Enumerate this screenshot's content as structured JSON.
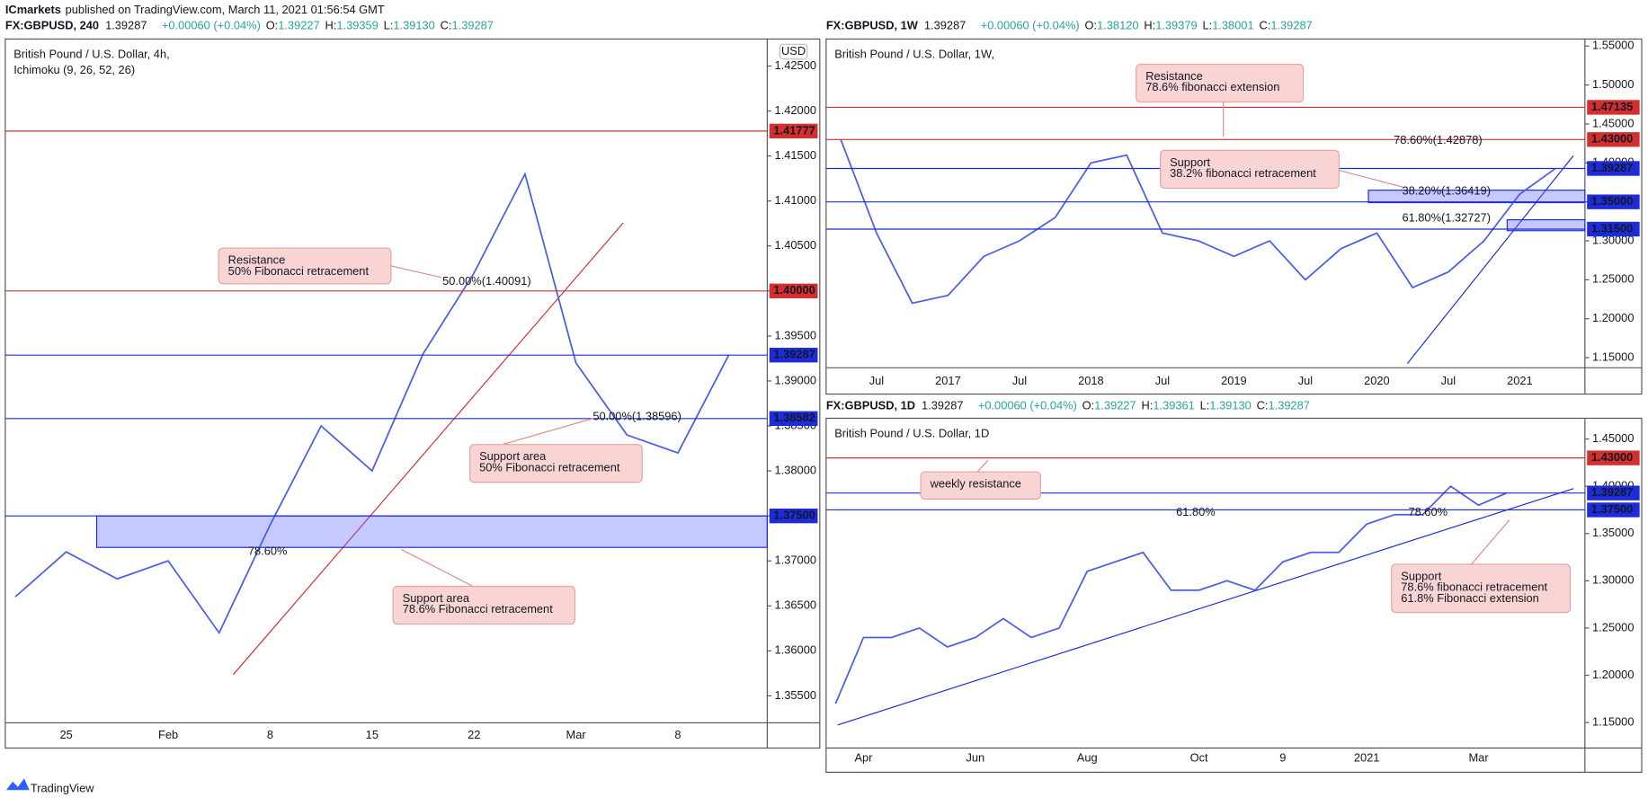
{
  "header": {
    "publisher": "ICmarkets",
    "published": "published on TradingView.com, March 11, 2021 01:56:54 GMT",
    "footer": "TradingView"
  },
  "chart_data": [
    {
      "type": "line",
      "quote": {
        "symbol": "FX:GBPUSD, 240",
        "last": "1.39287",
        "change": "+0.00060 (+0.04%)",
        "ohlc": [
          {
            "key": "O:",
            "value": "1.39227"
          },
          {
            "key": "H:",
            "value": "1.39359"
          },
          {
            "key": "L:",
            "value": "1.39130"
          },
          {
            "key": "C:",
            "value": "1.39287"
          }
        ]
      },
      "title": "British Pound / U.S. Dollar, 4h,",
      "subtitle": "Ichimoku (9, 26, 52, 26)",
      "currency": "USD",
      "categories": [
        null,
        "25",
        null,
        "Feb",
        null,
        "8",
        null,
        "15",
        null,
        "22",
        null,
        "Mar",
        null,
        "8",
        null
      ],
      "values": [
        1.366,
        1.371,
        1.368,
        1.37,
        1.362,
        1.374,
        1.385,
        1.38,
        1.393,
        1.402,
        1.413,
        1.392,
        1.384,
        1.382,
        1.3929
      ],
      "color": "#4a5ee8",
      "ylim": [
        1.352,
        1.428
      ],
      "yticks": [
        {
          "value": 1.355,
          "label": "1.35500"
        },
        {
          "value": 1.36,
          "label": "1.36000"
        },
        {
          "value": 1.365,
          "label": "1.36500"
        },
        {
          "value": 1.37,
          "label": "1.37000"
        },
        {
          "value": 1.375,
          "label": "1.37500"
        },
        {
          "value": 1.38,
          "label": "1.38000"
        },
        {
          "value": 1.385,
          "label": "1.38500"
        },
        {
          "value": 1.39,
          "label": "1.39000"
        },
        {
          "value": 1.395,
          "label": "1.39500"
        },
        {
          "value": 1.4,
          "label": "1.40000"
        },
        {
          "value": 1.405,
          "label": "1.40500"
        },
        {
          "value": 1.41,
          "label": "1.41000"
        },
        {
          "value": 1.415,
          "label": "1.41500"
        },
        {
          "value": 1.42,
          "label": "1.42000"
        },
        {
          "value": 1.425,
          "label": "1.42500"
        }
      ],
      "levels": [
        {
          "value": 1.41777,
          "label": "1.41777",
          "color": "#d32f2f"
        },
        {
          "value": 1.4,
          "label": "1.40000",
          "color": "#d32f2f"
        },
        {
          "value": 1.39287,
          "label": "1.39287",
          "color": "#1e2bd8"
        },
        {
          "value": 1.38582,
          "label": "1.38582",
          "color": "#1e2bd8"
        },
        {
          "value": 1.375,
          "label": "1.37500",
          "color": "#1e2bd8"
        }
      ],
      "zones": [
        [
          1.3715,
          1.375
        ]
      ],
      "fib_labels": [
        "50.00%(1.40091)",
        "50.00%(1.38596)",
        "78.60%"
      ],
      "annotations": [
        [
          "Resistance",
          "50% Fibonacci retracement"
        ],
        [
          "Support area",
          "50% Fibonacci retracement"
        ],
        [
          "Support area",
          "78.6% Fibonacci retracement"
        ]
      ]
    },
    {
      "type": "line",
      "quote": {
        "symbol": "FX:GBPUSD, 1W",
        "last": "1.39287",
        "change": "+0.00060 (+0.04%)",
        "ohlc": [
          {
            "key": "O:",
            "value": "1.38120"
          },
          {
            "key": "H:",
            "value": "1.39379"
          },
          {
            "key": "L:",
            "value": "1.38001"
          },
          {
            "key": "C:",
            "value": "1.39287"
          }
        ]
      },
      "title": "British Pound / U.S. Dollar, 1W,",
      "categories": [
        null,
        "Jul",
        null,
        "2017",
        null,
        "Jul",
        null,
        "2018",
        null,
        "Jul",
        null,
        "2019",
        null,
        "Jul",
        null,
        "2020",
        null,
        "Jul",
        null,
        "2021",
        null
      ],
      "values": [
        1.43,
        1.31,
        1.22,
        1.23,
        1.28,
        1.3,
        1.33,
        1.4,
        1.41,
        1.31,
        1.3,
        1.28,
        1.3,
        1.25,
        1.29,
        1.31,
        1.24,
        1.26,
        1.3,
        1.36,
        1.3929
      ],
      "color": "#4a5ee8",
      "ylim": [
        1.137,
        1.559
      ],
      "yticks": [
        {
          "value": 1.15,
          "label": "1.15000"
        },
        {
          "value": 1.2,
          "label": "1.20000"
        },
        {
          "value": 1.25,
          "label": "1.25000"
        },
        {
          "value": 1.3,
          "label": "1.30000"
        },
        {
          "value": 1.35,
          "label": "1.35000"
        },
        {
          "value": 1.4,
          "label": "1.40000"
        },
        {
          "value": 1.45,
          "label": "1.45000"
        },
        {
          "value": 1.5,
          "label": "1.50000"
        },
        {
          "value": 1.55,
          "label": "1.55000"
        }
      ],
      "levels": [
        {
          "value": 1.47135,
          "label": "1.47135",
          "color": "#d32f2f"
        },
        {
          "value": 1.43,
          "label": "1.43000",
          "color": "#d32f2f"
        },
        {
          "value": 1.39287,
          "label": "1.39287",
          "color": "#1e2bd8"
        },
        {
          "value": 1.35,
          "label": "1.35000",
          "color": "#1e2bd8"
        },
        {
          "value": 1.315,
          "label": "1.31500",
          "color": "#1e2bd8"
        }
      ],
      "zones": [
        [
          1.349,
          1.365
        ],
        [
          1.313,
          1.327
        ]
      ],
      "fib_labels": [
        "78.60%(1.42878)",
        "38.20%(1.36419)",
        "61.80%(1.32727)"
      ],
      "annotations": [
        [
          "Resistance",
          "78.6% fibonacci extension"
        ],
        [
          "Support",
          "38.2% fibonacci retracement"
        ]
      ]
    },
    {
      "type": "line",
      "quote": {
        "symbol": "FX:GBPUSD, 1D",
        "last": "1.39287",
        "change": "+0.00060 (+0.04%)",
        "ohlc": [
          {
            "key": "O:",
            "value": "1.39227"
          },
          {
            "key": "H:",
            "value": "1.39361"
          },
          {
            "key": "L:",
            "value": "1.39130"
          },
          {
            "key": "C:",
            "value": "1.39287"
          }
        ]
      },
      "title": "British Pound / U.S. Dollar, 1D",
      "categories": [
        null,
        "Apr",
        null,
        null,
        null,
        "Jun",
        null,
        null,
        null,
        "Aug",
        null,
        null,
        null,
        "Oct",
        null,
        null,
        "9",
        null,
        null,
        "2021",
        null,
        null,
        null,
        "Mar",
        null
      ],
      "values": [
        1.17,
        1.24,
        1.24,
        1.25,
        1.23,
        1.24,
        1.26,
        1.24,
        1.25,
        1.31,
        1.32,
        1.33,
        1.29,
        1.29,
        1.3,
        1.29,
        1.32,
        1.33,
        1.33,
        1.36,
        1.37,
        1.37,
        1.4,
        1.38,
        1.3929
      ],
      "color": "#4a5ee8",
      "ylim": [
        1.123,
        1.472
      ],
      "yticks": [
        {
          "value": 1.15,
          "label": "1.15000"
        },
        {
          "value": 1.2,
          "label": "1.20000"
        },
        {
          "value": 1.25,
          "label": "1.25000"
        },
        {
          "value": 1.3,
          "label": "1.30000"
        },
        {
          "value": 1.35,
          "label": "1.35000"
        },
        {
          "value": 1.4,
          "label": "1.40000"
        },
        {
          "value": 1.45,
          "label": "1.45000"
        }
      ],
      "levels": [
        {
          "value": 1.43,
          "label": "1.43000",
          "color": "#d32f2f"
        },
        {
          "value": 1.39287,
          "label": "1.39287",
          "color": "#1e2bd8"
        },
        {
          "value": 1.375,
          "label": "1.37500",
          "color": "#1e2bd8"
        }
      ],
      "zones": [],
      "fib_labels": [
        "61.80%",
        "78.60%"
      ],
      "annotations": [
        [
          "weekly resistance"
        ],
        [
          "Support",
          "78.6% fibonacci retracement",
          "61.8% Fibonacci extension"
        ]
      ]
    }
  ]
}
